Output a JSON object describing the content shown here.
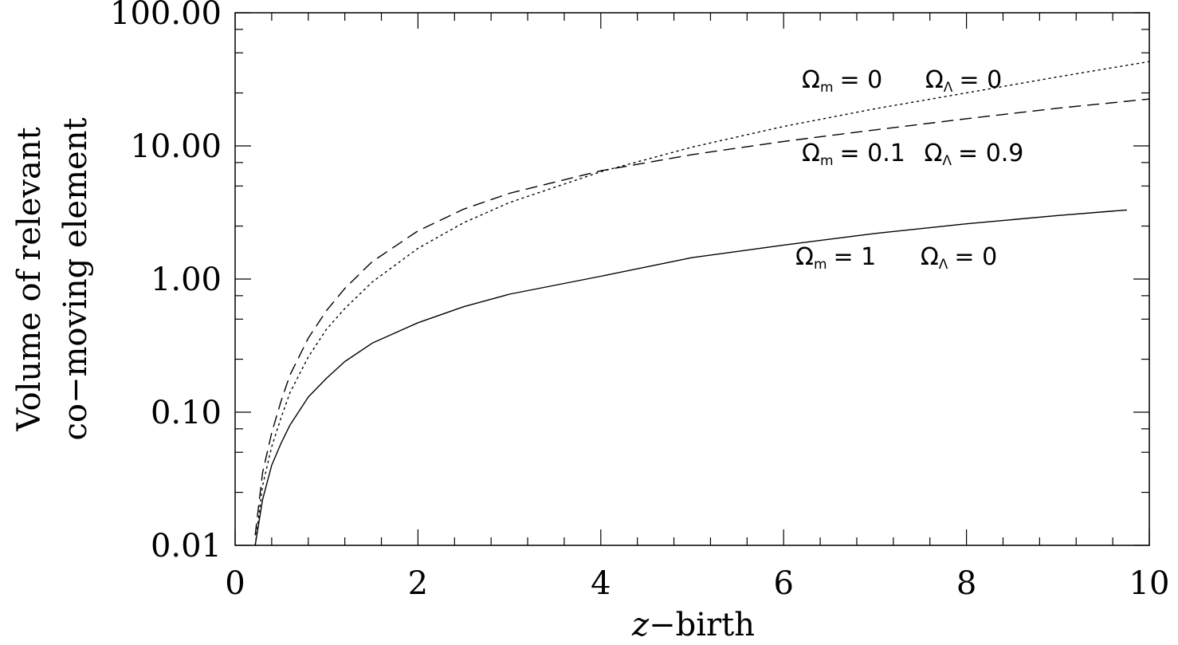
{
  "chart_data": {
    "type": "line",
    "title": "",
    "xlabel": {
      "italic": "z",
      "rest": "−birth"
    },
    "ylabel": [
      "Volume of relevant",
      "co−moving element"
    ],
    "xlim": [
      0,
      10
    ],
    "ylim": [
      0.01,
      100
    ],
    "y_scale": "log",
    "x_ticks": [
      "0",
      "2",
      "4",
      "6",
      "8",
      "10"
    ],
    "y_ticks": [
      "0.01",
      "0.10",
      "1.00",
      "10.00",
      "100.00"
    ],
    "grid": false,
    "legend": "none",
    "series": [
      {
        "style": "solid",
        "annotation": {
          "m_text": "= 1",
          "l_text": "= 0"
        },
        "x": [
          0.22,
          0.3,
          0.4,
          0.5,
          0.6,
          0.8,
          1.0,
          1.2,
          1.5,
          2.0,
          2.5,
          3.0,
          4.0,
          5.0,
          6.0,
          7.0,
          8.0,
          9.0,
          9.75
        ],
        "y": [
          0.01,
          0.022,
          0.04,
          0.058,
          0.08,
          0.13,
          0.18,
          0.24,
          0.33,
          0.47,
          0.62,
          0.77,
          1.05,
          1.45,
          1.8,
          2.2,
          2.6,
          3.0,
          3.3
        ]
      },
      {
        "style": "dashed",
        "annotation": {
          "m_text": "= 0.1",
          "l_text": "= 0.9"
        },
        "x": [
          0.22,
          0.3,
          0.4,
          0.5,
          0.6,
          0.8,
          1.0,
          1.2,
          1.5,
          2.0,
          2.5,
          3.0,
          4.0,
          5.0,
          6.0,
          7.0,
          8.0,
          9.0,
          10.0
        ],
        "y": [
          0.012,
          0.035,
          0.07,
          0.12,
          0.19,
          0.36,
          0.58,
          0.85,
          1.35,
          2.3,
          3.35,
          4.4,
          6.5,
          8.6,
          10.8,
          13.2,
          16.0,
          19.2,
          22.5
        ]
      },
      {
        "style": "dotted",
        "annotation": {
          "m_text": "= 0",
          "l_text": "= 0"
        },
        "x": [
          0.22,
          0.3,
          0.4,
          0.5,
          0.6,
          0.8,
          1.0,
          1.2,
          1.5,
          2.0,
          2.5,
          3.0,
          4.0,
          5.0,
          6.0,
          7.0,
          8.0,
          9.0,
          10.0
        ],
        "y": [
          0.01,
          0.028,
          0.055,
          0.09,
          0.14,
          0.26,
          0.42,
          0.6,
          0.95,
          1.7,
          2.65,
          3.75,
          6.4,
          9.8,
          14.0,
          19.0,
          25.0,
          33.0,
          43.0
        ]
      }
    ]
  }
}
